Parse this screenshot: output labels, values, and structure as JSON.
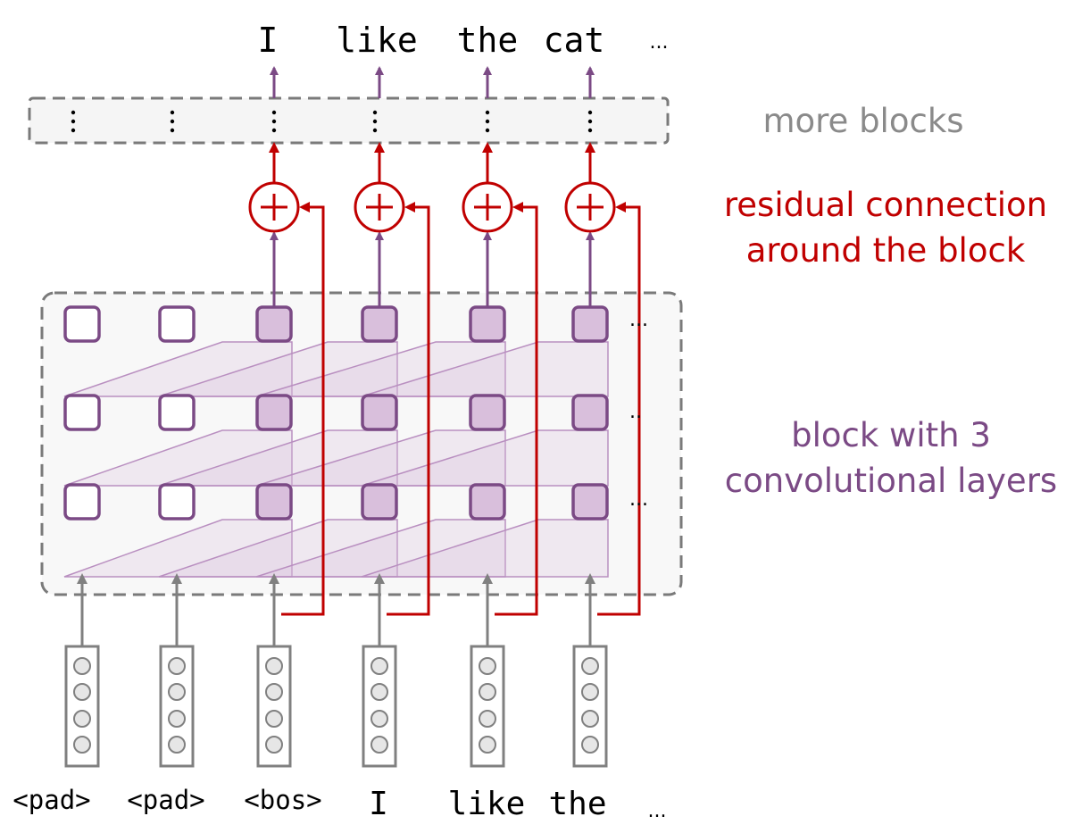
{
  "output_tokens": [
    "I",
    "like",
    "the",
    "cat",
    "..."
  ],
  "input_tokens": [
    "<pad>",
    "<pad>",
    "<bos>",
    "I",
    "like",
    "the",
    "..."
  ],
  "layer_ellipsis": [
    "...",
    "..",
    "..."
  ],
  "labels": {
    "more_blocks": "more blocks",
    "residual_line1": "residual connection",
    "residual_line2": "around the block",
    "block_line1": "block with 3",
    "block_line2": "convolutional layers"
  },
  "colors": {
    "purple": "#7b4a85",
    "purple_fill": "#d9bfdc",
    "red": "#c00000",
    "gray": "#808080",
    "label_gray": "#8a8a8a"
  }
}
